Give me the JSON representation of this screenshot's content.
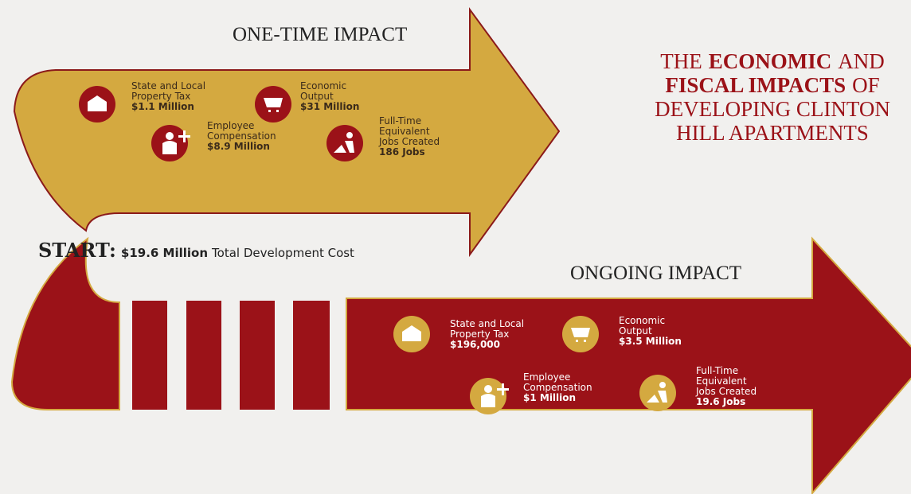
{
  "title_lines": [
    [
      {
        "text": "THE",
        "bold": false
      },
      {
        "text": "ECONOMIC",
        "bold": true
      },
      {
        "text": "AND",
        "bold": false
      }
    ],
    [
      {
        "text": "FISCAL IMPACTS",
        "bold": true
      },
      {
        "text": "OF",
        "bold": false
      }
    ],
    [
      {
        "text": "DEVELOPING CLINTON",
        "bold": false
      }
    ],
    [
      {
        "text": "HILL APARTMENTS",
        "bold": false
      }
    ]
  ],
  "start": {
    "label": "START:",
    "amount": "$19.6 Million",
    "text": "Total Development Cost"
  },
  "one_time": {
    "heading": "ONE-TIME IMPACT",
    "items": [
      {
        "label_lines": [
          "State and Local",
          "Property Tax"
        ],
        "value": "$1.1 Million"
      },
      {
        "label_lines": [
          "Economic",
          "Output"
        ],
        "value": "$31 Million"
      },
      {
        "label_lines": [
          "Employee",
          "Compensation"
        ],
        "value": "$8.9 Million"
      },
      {
        "label_lines": [
          "Full-Time",
          "Equivalent",
          "Jobs Created"
        ],
        "value": "186 Jobs"
      }
    ]
  },
  "ongoing": {
    "heading": "ONGOING IMPACT",
    "items": [
      {
        "label_lines": [
          "State and Local",
          "Property Tax"
        ],
        "value": "$196,000"
      },
      {
        "label_lines": [
          "Economic",
          "Output"
        ],
        "value": "$3.5 Million"
      },
      {
        "label_lines": [
          "Employee",
          "Compensation"
        ],
        "value": "$1 Million"
      },
      {
        "label_lines": [
          "Full-Time",
          "Equivalent",
          "Jobs Created"
        ],
        "value": "19.6 Jobs"
      }
    ]
  }
}
